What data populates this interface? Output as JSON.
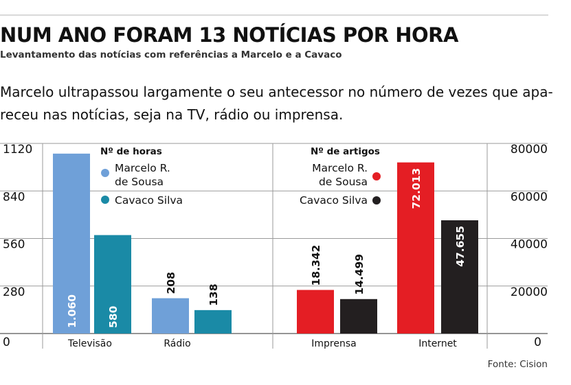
{
  "header": {
    "title": "NUM ANO FORAM 13 NOTÍCIAS POR HORA",
    "subtitle": "Levantamento das notícias com referências a Marcelo e a Cavaco",
    "lede_line1": "Marcelo ultrapassou largamente o seu antecessor no número de vezes que apa-",
    "lede_line2": "receu nas notícias, seja na TV, rádio ou imprensa."
  },
  "source": "Fonte: Cision",
  "colors": {
    "marcelo_hours": "#6fa0d8",
    "cavaco_hours": "#1a8aa6",
    "marcelo_articles": "#e41e24",
    "cavaco_articles": "#231f20",
    "grid": "#9a9a9a"
  },
  "chart_data": {
    "type": "bar",
    "left_panel": {
      "legend_title": "Nº de horas",
      "axis": {
        "ylim": [
          0,
          1120
        ],
        "ticks": [
          "0",
          "280",
          "560",
          "840",
          "1120"
        ],
        "tick_values": [
          0,
          280,
          560,
          840,
          1120
        ]
      },
      "categories": [
        "Televisão",
        "Rádio"
      ],
      "series": [
        {
          "name": "Marcelo R. de Sousa",
          "name_lines": [
            "Marcelo R.",
            "de Sousa"
          ],
          "values": [
            1060,
            208
          ],
          "labels": [
            "1.060",
            "208"
          ]
        },
        {
          "name": "Cavaco Silva",
          "name_lines": [
            "Cavaco Silva"
          ],
          "values": [
            580,
            138
          ],
          "labels": [
            "580",
            "138"
          ]
        }
      ]
    },
    "right_panel": {
      "legend_title": "Nº de artigos",
      "axis": {
        "ylim": [
          0,
          80000
        ],
        "ticks": [
          "0",
          "20000",
          "40000",
          "60000",
          "80000"
        ],
        "tick_values": [
          0,
          20000,
          40000,
          60000,
          80000
        ]
      },
      "categories": [
        "Imprensa",
        "Internet"
      ],
      "series": [
        {
          "name": "Marcelo R. de Sousa",
          "name_lines": [
            "Marcelo R.",
            "de Sousa"
          ],
          "values": [
            18342,
            72013
          ],
          "labels": [
            "18.342",
            "72.013"
          ]
        },
        {
          "name": "Cavaco Silva",
          "name_lines": [
            "Cavaco Silva"
          ],
          "values": [
            14499,
            47655
          ],
          "labels": [
            "14.499",
            "47.655"
          ]
        }
      ]
    }
  }
}
